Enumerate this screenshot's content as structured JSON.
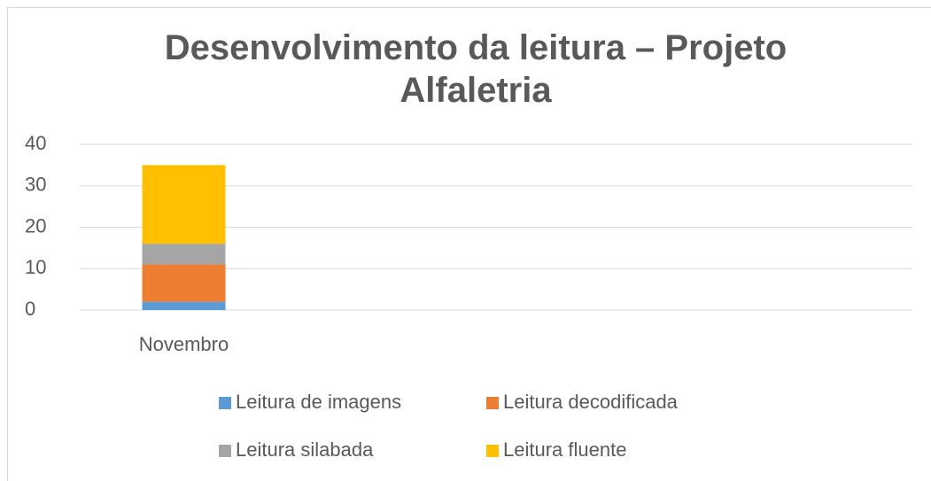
{
  "chart_data": {
    "type": "bar",
    "stacked": true,
    "title": "Desenvolvimento da leitura – Projeto Alfaletria",
    "categories": [
      "Novembro",
      null,
      null,
      null
    ],
    "series": [
      {
        "name": "Leitura de imagens",
        "color": "#5b9bd5",
        "values": [
          2,
          null,
          null,
          null
        ]
      },
      {
        "name": "Leitura decodificada",
        "color": "#ed7d31",
        "values": [
          9,
          null,
          null,
          null
        ]
      },
      {
        "name": "Leitura silabada",
        "color": "#a5a5a5",
        "values": [
          5,
          null,
          null,
          null
        ]
      },
      {
        "name": "Leitura fluente",
        "color": "#ffc000",
        "values": [
          19,
          null,
          null,
          null
        ]
      }
    ],
    "ylim": [
      0,
      40
    ],
    "yticks": [
      0,
      10,
      20,
      30,
      40
    ],
    "grid": true,
    "legend": "bottom"
  }
}
